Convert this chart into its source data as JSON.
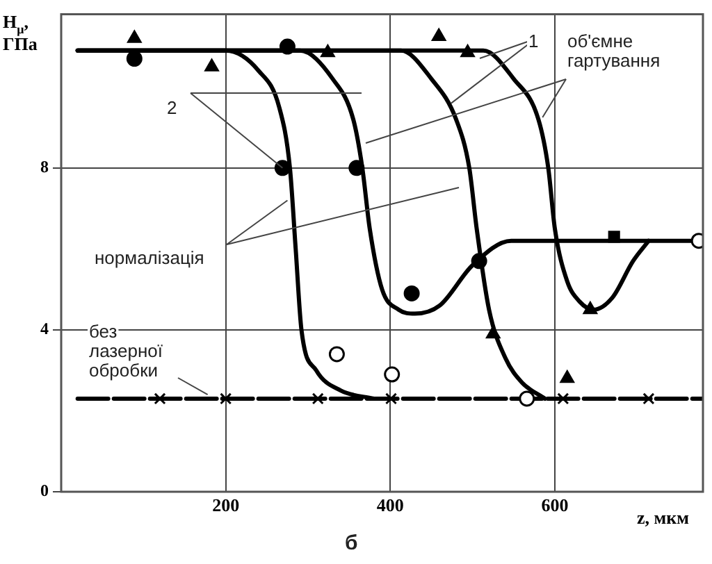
{
  "chart_data": {
    "type": "line",
    "xlabel": "z, мкм",
    "ylabel": "H$_{μ}$, ГПа",
    "xlim": [
      0,
      780
    ],
    "ylim": [
      0,
      11.8
    ],
    "xticks": [
      200,
      400,
      600
    ],
    "yticks": [
      0,
      4,
      8
    ],
    "grid": true,
    "legend": false,
    "annotations": [
      {
        "text": "1",
        "x": 474,
        "y": 9.6
      },
      {
        "text": "2",
        "x": 269,
        "y": 8
      },
      {
        "text": "об'ємне гартування",
        "x": 585,
        "y": 9.25
      },
      {
        "text": "нормалізація",
        "x": 275,
        "y": 7.2
      },
      {
        "text": "без лазерної обробки",
        "x": 178,
        "y": 2.4
      },
      "б"
    ],
    "series": [
      {
        "type": "line",
        "color": "#000000",
        "x": [
          20,
          200,
          240,
          265,
          278,
          285,
          292,
          310,
          340,
          380
        ],
        "values": [
          10.9,
          10.9,
          10.4,
          9.5,
          8,
          6,
          4,
          3,
          2.5,
          2.3
        ]
      },
      {
        "type": "line",
        "color": "#000000",
        "x": [
          20,
          290,
          330,
          355,
          366,
          375,
          390,
          410,
          430,
          460,
          500,
          547,
          780
        ],
        "values": [
          10.9,
          10.9,
          10.2,
          9.2,
          8,
          6.5,
          5,
          4.5,
          4.4,
          4.6,
          5.6,
          6.2,
          6.2
        ]
      },
      {
        "type": "line",
        "color": "#000000",
        "x": [
          20,
          413,
          450,
          480,
          496,
          505,
          520,
          540,
          560,
          588
        ],
        "values": [
          10.9,
          10.9,
          10.2,
          9.2,
          8,
          6.5,
          4.5,
          3.3,
          2.7,
          2.3
        ]
      },
      {
        "type": "line",
        "color": "#000000",
        "x": [
          20,
          513,
          550,
          580,
          592,
          600,
          615,
          630,
          647,
          670,
          695,
          714
        ],
        "values": [
          10.9,
          10.9,
          10.2,
          9.2,
          8,
          6.5,
          5.2,
          4.7,
          4.5,
          4.8,
          5.7,
          6.2
        ]
      },
      {
        "type": "line",
        "line_style": "dashed",
        "color": "#000000",
        "x": [
          20,
          780
        ],
        "values": [
          2.3,
          2.3
        ]
      },
      {
        "type": "scatter",
        "marker": "circle",
        "color": "#000000",
        "x": [
          89,
          275,
          269,
          359,
          426,
          508
        ],
        "values": [
          10.7,
          11,
          8,
          8,
          4.9,
          5.7
        ]
      },
      {
        "type": "scatter",
        "marker": "triangle",
        "color": "#000000",
        "x": [
          89,
          183,
          324,
          459,
          494,
          525,
          643,
          615
        ],
        "values": [
          11.2,
          10.5,
          10.85,
          11.25,
          10.85,
          3.9,
          4.5,
          2.8
        ]
      },
      {
        "type": "scatter",
        "marker": "circle",
        "color": "#ffffff",
        "x": [
          335,
          402,
          566,
          775
        ],
        "values": [
          3.4,
          2.9,
          2.3,
          6.2
        ]
      },
      {
        "type": "scatter",
        "marker": "square",
        "color": "#000000",
        "x": [
          672
        ],
        "values": [
          6.3
        ]
      },
      {
        "type": "scatter",
        "marker": "cross",
        "color": "#000000",
        "x": [
          120,
          200,
          312,
          401,
          610,
          714
        ],
        "values": [
          2.3,
          2.3,
          2.3,
          2.3,
          2.3,
          2.3
        ]
      }
    ]
  }
}
